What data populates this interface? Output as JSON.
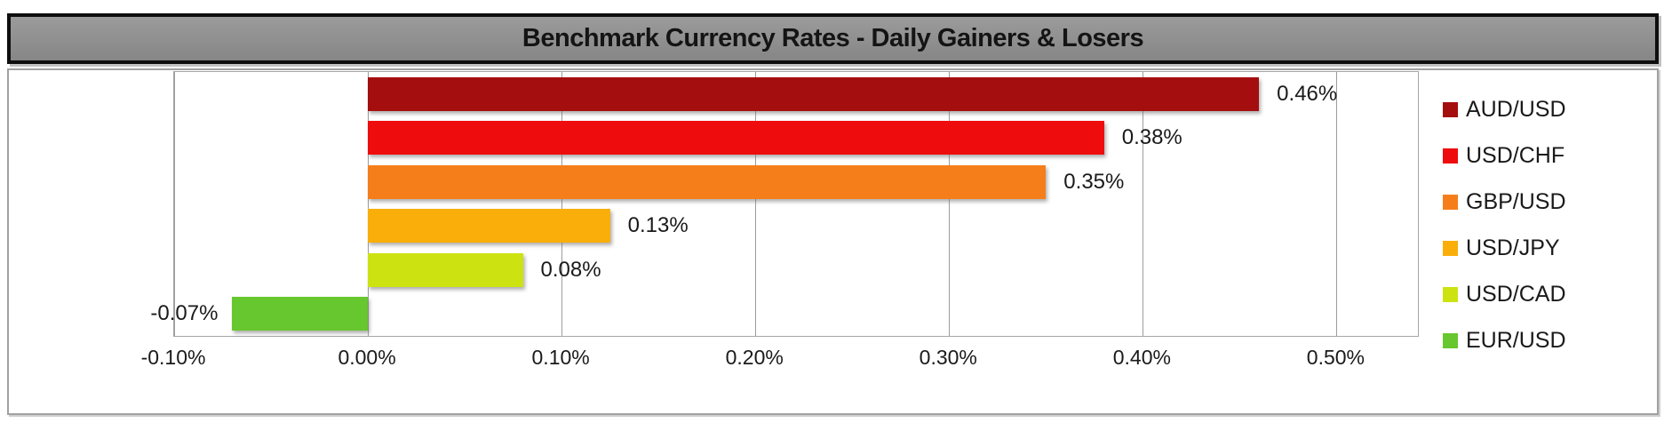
{
  "title": "Benchmark Currency Rates - Daily Gainers & Losers",
  "colors": {
    "title_bg": "#8a8a8a",
    "title_text": "#141414",
    "grid": "#9c9c9c",
    "plot_border": "#a6a6a6",
    "frame_border": "#a2a2a2",
    "label_text": "#1a1a1a"
  },
  "chart_data": {
    "type": "bar",
    "orientation": "horizontal",
    "title": "Benchmark Currency Rates - Daily Gainers & Losers",
    "xlabel": "",
    "ylabel": "",
    "grid": true,
    "legend_position": "right",
    "xlim": [
      -0.1,
      0.542
    ],
    "x_ticks": [
      {
        "value": -0.1,
        "label": "-0.10%"
      },
      {
        "value": 0.0,
        "label": "0.00%"
      },
      {
        "value": 0.1,
        "label": "0.10%"
      },
      {
        "value": 0.2,
        "label": "0.20%"
      },
      {
        "value": 0.3,
        "label": "0.30%"
      },
      {
        "value": 0.4,
        "label": "0.40%"
      },
      {
        "value": 0.5,
        "label": "0.50%"
      }
    ],
    "series": [
      {
        "name": "AUD/USD",
        "value": 0.46,
        "label": "0.46%",
        "color": "#a50e0e"
      },
      {
        "name": "USD/CHF",
        "value": 0.38,
        "label": "0.38%",
        "color": "#ee0c0c"
      },
      {
        "name": "GBP/USD",
        "value": 0.35,
        "label": "0.35%",
        "color": "#f57e1b"
      },
      {
        "name": "USD/JPY",
        "value": 0.125,
        "label": "0.13%",
        "color": "#faae0a"
      },
      {
        "name": "USD/CAD",
        "value": 0.08,
        "label": "0.08%",
        "color": "#cde211"
      },
      {
        "name": "EUR/USD",
        "value": -0.07,
        "label": "-0.07%",
        "color": "#67c72e"
      }
    ]
  }
}
